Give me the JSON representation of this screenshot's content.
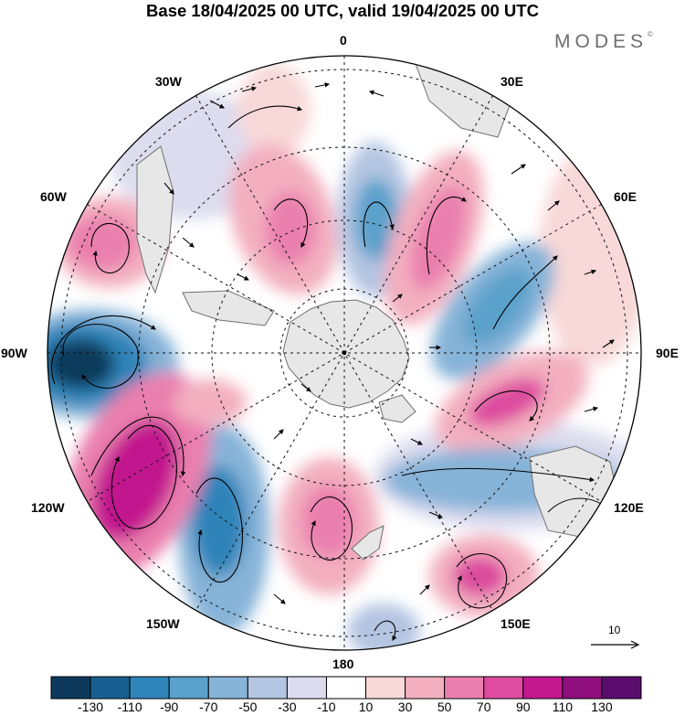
{
  "title": "Base 18/04/2025 00 UTC, valid 19/04/2025 00 UTC",
  "brand": "MODES",
  "brand_mark": "©",
  "longitude_labels": {
    "lon_0": "0",
    "lon_30e": "30E",
    "lon_60e": "60E",
    "lon_90e": "90E",
    "lon_120e": "120E",
    "lon_150e": "150E",
    "lon_180": "180",
    "lon_150w": "150W",
    "lon_120w": "120W",
    "lon_90w": "90W",
    "lon_60w": "60W",
    "lon_30w": "30W"
  },
  "reference_vector": {
    "label": "10"
  },
  "colorbar": {
    "colors": [
      "#0d3a5c",
      "#175f91",
      "#2f84b9",
      "#5aa1cb",
      "#86b3d8",
      "#b4c5e2",
      "#dcdcee",
      "#ffffff",
      "#f8d8d8",
      "#f3afc0",
      "#ea7fae",
      "#dd4c9f",
      "#c2198f",
      "#8e0f7d",
      "#5b0d6e"
    ],
    "tick_labels": [
      "-130",
      "-110",
      "-90",
      "-70",
      "-50",
      "-30",
      "-10",
      "10",
      "30",
      "50",
      "70",
      "90",
      "110",
      "130"
    ]
  },
  "colors": {
    "land": "#e7e7e7",
    "coast": "#6f6f6f",
    "grid": "#111111"
  }
}
